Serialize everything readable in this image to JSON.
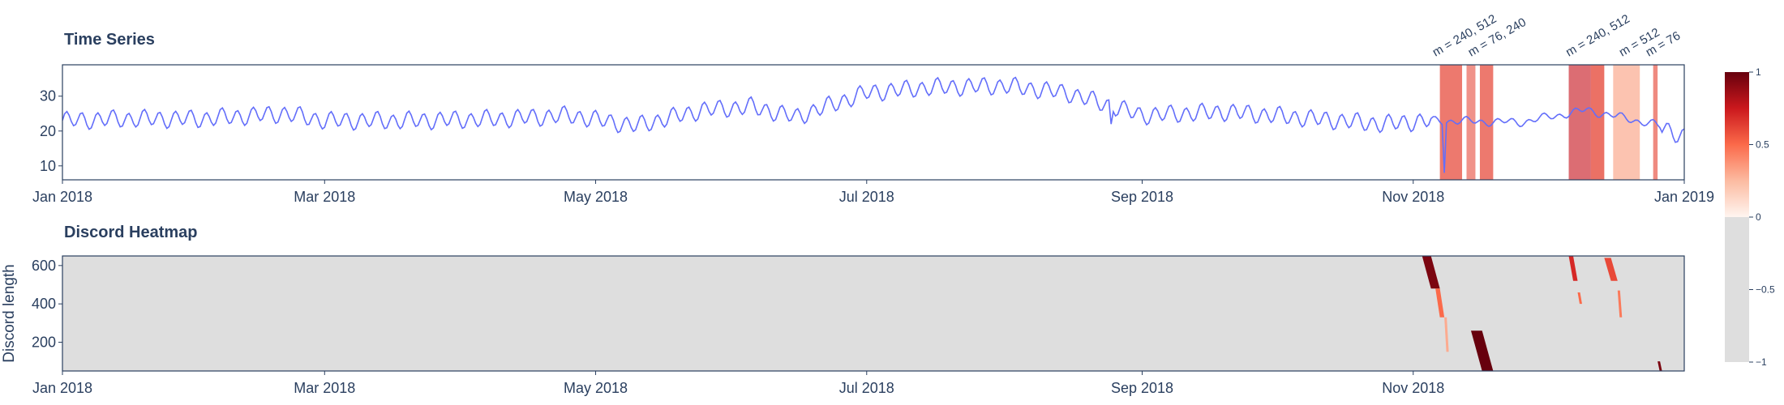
{
  "chart_data": [
    {
      "type": "line",
      "title": "Time Series",
      "xlabel": "",
      "ylabel": "",
      "x_ticks": [
        "Jan 2018",
        "Mar 2018",
        "May 2018",
        "Jul 2018",
        "Sep 2018",
        "Nov 2018",
        "Jan 2019"
      ],
      "x_range": [
        "2018-01-01",
        "2019-01-01"
      ],
      "y_ticks": [
        10,
        20,
        30
      ],
      "ylim": [
        6,
        39
      ],
      "series": [
        {
          "color": "#636efa",
          "points": [
            [
              "2018-01-01",
              23
            ],
            [
              "2018-01-15",
              23.5
            ],
            [
              "2018-02-01",
              23.5
            ],
            [
              "2018-02-20",
              25
            ],
            [
              "2018-03-01",
              23
            ],
            [
              "2018-03-20",
              23
            ],
            [
              "2018-04-10",
              23.5
            ],
            [
              "2018-04-25",
              24.5
            ],
            [
              "2018-05-10",
              21.5
            ],
            [
              "2018-05-25",
              26
            ],
            [
              "2018-06-05",
              27
            ],
            [
              "2018-06-15",
              24
            ],
            [
              "2018-07-01",
              31
            ],
            [
              "2018-07-15",
              32.5
            ],
            [
              "2018-08-01",
              33
            ],
            [
              "2018-08-15",
              31
            ],
            [
              "2018-09-01",
              24.5
            ],
            [
              "2018-09-20",
              25.5
            ],
            [
              "2018-10-10",
              23.5
            ],
            [
              "2018-10-25",
              22
            ],
            [
              "2018-11-05",
              23
            ],
            [
              "2018-11-25",
              22.5
            ],
            [
              "2018-12-10",
              26
            ],
            [
              "2018-12-25",
              22
            ],
            [
              "2019-01-01",
              18.5
            ]
          ]
        }
      ],
      "dips": [
        [
          "2018-11-08",
          8
        ],
        [
          "2018-08-25",
          22
        ]
      ],
      "highlight_regions": [
        {
          "start": "2018-11-07",
          "end": "2018-11-12",
          "color": "#e8584a",
          "opacity": 0.8
        },
        {
          "start": "2018-11-13",
          "end": "2018-11-15",
          "color": "#e8584a",
          "opacity": 0.65
        },
        {
          "start": "2018-11-16",
          "end": "2018-11-19",
          "color": "#e8584a",
          "opacity": 0.8
        },
        {
          "start": "2018-12-06",
          "end": "2018-12-11",
          "color": "#d6545a",
          "opacity": 0.85
        },
        {
          "start": "2018-12-11",
          "end": "2018-12-14",
          "color": "#e8584a",
          "opacity": 0.85
        },
        {
          "start": "2018-12-16",
          "end": "2018-12-22",
          "color": "#fcb9a2",
          "opacity": 0.85
        },
        {
          "start": "2018-12-25",
          "end": "2018-12-26",
          "color": "#e8584a",
          "opacity": 0.7
        }
      ],
      "annotations": [
        {
          "text": "m = 240, 512",
          "x": "2018-11-06"
        },
        {
          "text": "m = 76, 240",
          "x": "2018-11-14"
        },
        {
          "text": "m = 240, 512",
          "x": "2018-12-06"
        },
        {
          "text": "m = 512",
          "x": "2018-12-18"
        },
        {
          "text": "m = 76",
          "x": "2018-12-24"
        }
      ]
    },
    {
      "type": "heatmap",
      "title": "Discord Heatmap",
      "xlabel": "",
      "ylabel": "Discord length",
      "x_ticks": [
        "Jan 2018",
        "Mar 2018",
        "May 2018",
        "Jul 2018",
        "Sep 2018",
        "Nov 2018"
      ],
      "x_range": [
        "2018-01-01",
        "2019-01-01"
      ],
      "y_ticks": [
        200,
        400,
        600
      ],
      "ylim": [
        50,
        650
      ],
      "background_value": -1,
      "background_color": "#dedede",
      "discord_streaks": [
        {
          "t0": "2018-11-03",
          "t1": "2018-11-07",
          "top": 650,
          "bottom": 480,
          "value": 0.95
        },
        {
          "t0": "2018-11-06",
          "t1": "2018-11-08",
          "top": 480,
          "bottom": 330,
          "value": 0.5
        },
        {
          "t0": "2018-11-08",
          "t1": "2018-11-09",
          "top": 330,
          "bottom": 150,
          "value": 0.3
        },
        {
          "t0": "2018-11-14",
          "t1": "2018-11-19",
          "top": 260,
          "bottom": 50,
          "value": 1.0
        },
        {
          "t0": "2018-12-06",
          "t1": "2018-12-08",
          "top": 650,
          "bottom": 520,
          "value": 0.7
        },
        {
          "t0": "2018-12-08",
          "t1": "2018-12-09",
          "top": 460,
          "bottom": 400,
          "value": 0.5
        },
        {
          "t0": "2018-12-14",
          "t1": "2018-12-17",
          "top": 640,
          "bottom": 520,
          "value": 0.6
        },
        {
          "t0": "2018-12-17",
          "t1": "2018-12-18",
          "top": 470,
          "bottom": 330,
          "value": 0.45
        },
        {
          "t0": "2018-12-26",
          "t1": "2018-12-27",
          "top": 100,
          "bottom": 50,
          "value": 0.95
        }
      ],
      "colorbar": {
        "ticks": [
          1,
          0.5,
          0,
          -0.5,
          -1
        ],
        "tick_labels": [
          "1",
          "0.5",
          "0",
          "−0.5",
          "−1"
        ],
        "range": [
          -1,
          1
        ],
        "colors": {
          "0": "#fff5f0",
          "0.5": "#fc8e6e",
          "1": "#67000d",
          "negative": "#dedede"
        }
      }
    }
  ]
}
